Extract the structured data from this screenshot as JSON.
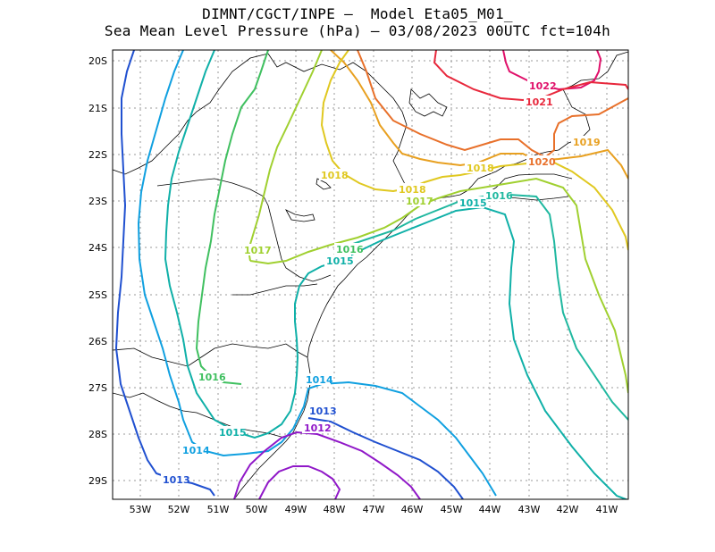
{
  "title_line1": "DIMNT/CGCT/INPE –  Model Eta05_M01_",
  "title_line2": "Sea Mean Level Pressure (hPa) – 03/08/2023 00UTC fct=104h",
  "lat_labels": [
    "20S",
    "21S",
    "22S",
    "23S",
    "24S",
    "25S",
    "26S",
    "27S",
    "28S",
    "29S"
  ],
  "lon_labels": [
    "53W",
    "52W",
    "51W",
    "50W",
    "49W",
    "48W",
    "47W",
    "46W",
    "45W",
    "44W",
    "43W",
    "42W",
    "41W"
  ],
  "contour_labels": [
    {
      "text": "1022",
      "color": "#e0106a"
    },
    {
      "text": "1021",
      "color": "#e8283c"
    },
    {
      "text": "1020",
      "color": "#e8702a"
    },
    {
      "text": "1019",
      "color": "#e8a020"
    },
    {
      "text": "1018",
      "color": "#e0c820"
    },
    {
      "text": "1018",
      "color": "#e0c820"
    },
    {
      "text": "1018",
      "color": "#e0c820"
    },
    {
      "text": "1017",
      "color": "#a0d030"
    },
    {
      "text": "1017",
      "color": "#a0d030"
    },
    {
      "text": "1016",
      "color": "#40c060"
    },
    {
      "text": "1016",
      "color": "#40c060"
    },
    {
      "text": "1016",
      "color": "#20b8a0"
    },
    {
      "text": "1015",
      "color": "#10b0a8"
    },
    {
      "text": "1015",
      "color": "#10b0a8"
    },
    {
      "text": "1015",
      "color": "#10b0a8"
    },
    {
      "text": "1014",
      "color": "#10a0e0"
    },
    {
      "text": "1014",
      "color": "#10a0e0"
    },
    {
      "text": "1013",
      "color": "#2050d0"
    },
    {
      "text": "1013",
      "color": "#2050d0"
    },
    {
      "text": "1012",
      "color": "#9018c8"
    }
  ]
}
